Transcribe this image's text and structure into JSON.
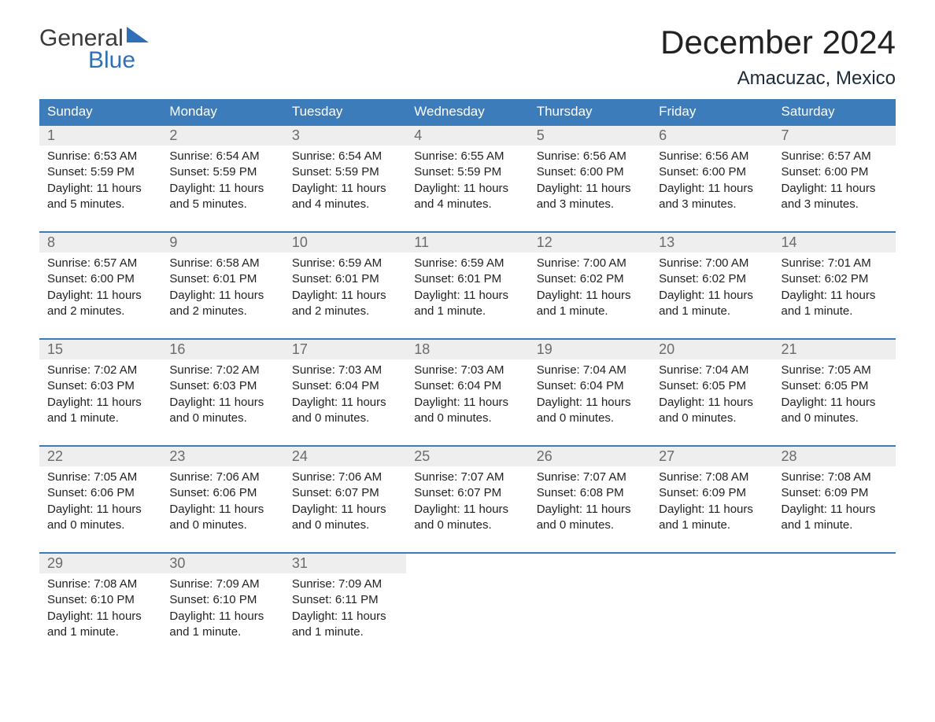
{
  "brand": {
    "word1": "General",
    "word2": "Blue",
    "logo_color": "#2f70b7"
  },
  "title": "December 2024",
  "location": "Amacuzac, Mexico",
  "colors": {
    "header_bg": "#3d7cba",
    "header_text": "#ffffff",
    "daynum_bg": "#eeeeee",
    "daynum_text": "#6b6b6b",
    "page_bg": "#ffffff",
    "text": "#222222",
    "rule": "#3d7cba"
  },
  "typography": {
    "title_fontsize": 42,
    "location_fontsize": 24,
    "header_fontsize": 17,
    "daynum_fontsize": 18,
    "body_fontsize": 15,
    "font_family": "Arial"
  },
  "day_headers": [
    "Sunday",
    "Monday",
    "Tuesday",
    "Wednesday",
    "Thursday",
    "Friday",
    "Saturday"
  ],
  "weeks": [
    [
      {
        "n": "1",
        "sr": "Sunrise: 6:53 AM",
        "ss": "Sunset: 5:59 PM",
        "dl1": "Daylight: 11 hours",
        "dl2": "and 5 minutes."
      },
      {
        "n": "2",
        "sr": "Sunrise: 6:54 AM",
        "ss": "Sunset: 5:59 PM",
        "dl1": "Daylight: 11 hours",
        "dl2": "and 5 minutes."
      },
      {
        "n": "3",
        "sr": "Sunrise: 6:54 AM",
        "ss": "Sunset: 5:59 PM",
        "dl1": "Daylight: 11 hours",
        "dl2": "and 4 minutes."
      },
      {
        "n": "4",
        "sr": "Sunrise: 6:55 AM",
        "ss": "Sunset: 5:59 PM",
        "dl1": "Daylight: 11 hours",
        "dl2": "and 4 minutes."
      },
      {
        "n": "5",
        "sr": "Sunrise: 6:56 AM",
        "ss": "Sunset: 6:00 PM",
        "dl1": "Daylight: 11 hours",
        "dl2": "and 3 minutes."
      },
      {
        "n": "6",
        "sr": "Sunrise: 6:56 AM",
        "ss": "Sunset: 6:00 PM",
        "dl1": "Daylight: 11 hours",
        "dl2": "and 3 minutes."
      },
      {
        "n": "7",
        "sr": "Sunrise: 6:57 AM",
        "ss": "Sunset: 6:00 PM",
        "dl1": "Daylight: 11 hours",
        "dl2": "and 3 minutes."
      }
    ],
    [
      {
        "n": "8",
        "sr": "Sunrise: 6:57 AM",
        "ss": "Sunset: 6:00 PM",
        "dl1": "Daylight: 11 hours",
        "dl2": "and 2 minutes."
      },
      {
        "n": "9",
        "sr": "Sunrise: 6:58 AM",
        "ss": "Sunset: 6:01 PM",
        "dl1": "Daylight: 11 hours",
        "dl2": "and 2 minutes."
      },
      {
        "n": "10",
        "sr": "Sunrise: 6:59 AM",
        "ss": "Sunset: 6:01 PM",
        "dl1": "Daylight: 11 hours",
        "dl2": "and 2 minutes."
      },
      {
        "n": "11",
        "sr": "Sunrise: 6:59 AM",
        "ss": "Sunset: 6:01 PM",
        "dl1": "Daylight: 11 hours",
        "dl2": "and 1 minute."
      },
      {
        "n": "12",
        "sr": "Sunrise: 7:00 AM",
        "ss": "Sunset: 6:02 PM",
        "dl1": "Daylight: 11 hours",
        "dl2": "and 1 minute."
      },
      {
        "n": "13",
        "sr": "Sunrise: 7:00 AM",
        "ss": "Sunset: 6:02 PM",
        "dl1": "Daylight: 11 hours",
        "dl2": "and 1 minute."
      },
      {
        "n": "14",
        "sr": "Sunrise: 7:01 AM",
        "ss": "Sunset: 6:02 PM",
        "dl1": "Daylight: 11 hours",
        "dl2": "and 1 minute."
      }
    ],
    [
      {
        "n": "15",
        "sr": "Sunrise: 7:02 AM",
        "ss": "Sunset: 6:03 PM",
        "dl1": "Daylight: 11 hours",
        "dl2": "and 1 minute."
      },
      {
        "n": "16",
        "sr": "Sunrise: 7:02 AM",
        "ss": "Sunset: 6:03 PM",
        "dl1": "Daylight: 11 hours",
        "dl2": "and 0 minutes."
      },
      {
        "n": "17",
        "sr": "Sunrise: 7:03 AM",
        "ss": "Sunset: 6:04 PM",
        "dl1": "Daylight: 11 hours",
        "dl2": "and 0 minutes."
      },
      {
        "n": "18",
        "sr": "Sunrise: 7:03 AM",
        "ss": "Sunset: 6:04 PM",
        "dl1": "Daylight: 11 hours",
        "dl2": "and 0 minutes."
      },
      {
        "n": "19",
        "sr": "Sunrise: 7:04 AM",
        "ss": "Sunset: 6:04 PM",
        "dl1": "Daylight: 11 hours",
        "dl2": "and 0 minutes."
      },
      {
        "n": "20",
        "sr": "Sunrise: 7:04 AM",
        "ss": "Sunset: 6:05 PM",
        "dl1": "Daylight: 11 hours",
        "dl2": "and 0 minutes."
      },
      {
        "n": "21",
        "sr": "Sunrise: 7:05 AM",
        "ss": "Sunset: 6:05 PM",
        "dl1": "Daylight: 11 hours",
        "dl2": "and 0 minutes."
      }
    ],
    [
      {
        "n": "22",
        "sr": "Sunrise: 7:05 AM",
        "ss": "Sunset: 6:06 PM",
        "dl1": "Daylight: 11 hours",
        "dl2": "and 0 minutes."
      },
      {
        "n": "23",
        "sr": "Sunrise: 7:06 AM",
        "ss": "Sunset: 6:06 PM",
        "dl1": "Daylight: 11 hours",
        "dl2": "and 0 minutes."
      },
      {
        "n": "24",
        "sr": "Sunrise: 7:06 AM",
        "ss": "Sunset: 6:07 PM",
        "dl1": "Daylight: 11 hours",
        "dl2": "and 0 minutes."
      },
      {
        "n": "25",
        "sr": "Sunrise: 7:07 AM",
        "ss": "Sunset: 6:07 PM",
        "dl1": "Daylight: 11 hours",
        "dl2": "and 0 minutes."
      },
      {
        "n": "26",
        "sr": "Sunrise: 7:07 AM",
        "ss": "Sunset: 6:08 PM",
        "dl1": "Daylight: 11 hours",
        "dl2": "and 0 minutes."
      },
      {
        "n": "27",
        "sr": "Sunrise: 7:08 AM",
        "ss": "Sunset: 6:09 PM",
        "dl1": "Daylight: 11 hours",
        "dl2": "and 1 minute."
      },
      {
        "n": "28",
        "sr": "Sunrise: 7:08 AM",
        "ss": "Sunset: 6:09 PM",
        "dl1": "Daylight: 11 hours",
        "dl2": "and 1 minute."
      }
    ],
    [
      {
        "n": "29",
        "sr": "Sunrise: 7:08 AM",
        "ss": "Sunset: 6:10 PM",
        "dl1": "Daylight: 11 hours",
        "dl2": "and 1 minute."
      },
      {
        "n": "30",
        "sr": "Sunrise: 7:09 AM",
        "ss": "Sunset: 6:10 PM",
        "dl1": "Daylight: 11 hours",
        "dl2": "and 1 minute."
      },
      {
        "n": "31",
        "sr": "Sunrise: 7:09 AM",
        "ss": "Sunset: 6:11 PM",
        "dl1": "Daylight: 11 hours",
        "dl2": "and 1 minute."
      },
      null,
      null,
      null,
      null
    ]
  ]
}
